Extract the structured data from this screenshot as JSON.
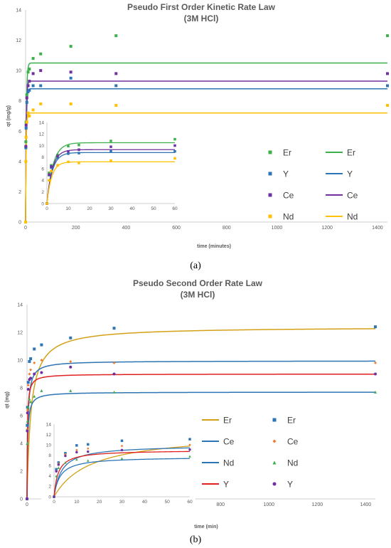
{
  "chart_data": [
    {
      "id": "a",
      "type": "scatter",
      "caption": "(a)",
      "title": "Pseudo First Order Kinetic Rate Law",
      "subtitle": "(3M HCl)",
      "xlabel": "time (minutes)",
      "ylabel": "qt (mg/g)",
      "xlim": [
        0,
        1440
      ],
      "ylim": [
        0,
        14
      ],
      "xticks": [
        0,
        200,
        400,
        600,
        800,
        1000,
        1200,
        1400
      ],
      "yticks": [
        0,
        2,
        4,
        6,
        8,
        10,
        12,
        14
      ],
      "grid": false,
      "legend_position": "right, inside plot",
      "legend": [
        {
          "label": "Er",
          "kind": "marker",
          "series": "Er"
        },
        {
          "label": "Er",
          "kind": "line",
          "series": "Er"
        },
        {
          "label": "Y",
          "kind": "marker",
          "series": "Y"
        },
        {
          "label": "Y",
          "kind": "line",
          "series": "Y"
        },
        {
          "label": "Ce",
          "kind": "marker",
          "series": "Ce"
        },
        {
          "label": "Ce",
          "kind": "line",
          "series": "Ce"
        },
        {
          "label": "Nd",
          "kind": "marker",
          "series": "Nd"
        },
        {
          "label": "Nd",
          "kind": "line",
          "series": "Nd"
        }
      ],
      "series": [
        {
          "name": "Er",
          "color": "#3db04b",
          "marker": "square",
          "x": [
            0,
            1,
            2,
            5,
            10,
            15,
            30,
            60,
            180,
            360,
            1440
          ],
          "y": [
            0,
            5.3,
            6.6,
            8.4,
            9.9,
            10.1,
            10.8,
            11.1,
            11.6,
            12.3,
            12.3
          ],
          "fit_qe": 10.5,
          "fit_k": 0.35
        },
        {
          "name": "Y",
          "color": "#2e75b6",
          "marker": "square",
          "x": [
            0,
            1,
            2,
            5,
            10,
            15,
            30,
            60,
            180,
            360,
            1440
          ],
          "y": [
            0,
            4.9,
            6.2,
            7.9,
            8.6,
            8.7,
            9.0,
            9.0,
            9.5,
            9.0,
            9.0
          ],
          "fit_qe": 8.8,
          "fit_k": 0.4
        },
        {
          "name": "Ce",
          "color": "#7030a0",
          "marker": "square",
          "x": [
            0,
            1,
            2,
            5,
            10,
            15,
            30,
            60,
            180,
            360,
            1440
          ],
          "y": [
            0,
            5.0,
            6.4,
            8.2,
            9.0,
            9.3,
            9.8,
            10.0,
            9.9,
            9.8,
            9.8
          ],
          "fit_qe": 9.3,
          "fit_k": 0.4
        },
        {
          "name": "Nd",
          "color": "#ffc000",
          "marker": "square",
          "x": [
            0,
            1,
            2,
            5,
            10,
            15,
            30,
            60,
            180,
            360,
            1440
          ],
          "y": [
            0,
            4.0,
            5.6,
            6.6,
            7.2,
            7.0,
            7.4,
            7.8,
            7.8,
            7.7,
            7.7
          ],
          "fit_qe": 7.2,
          "fit_k": 0.45
        }
      ],
      "inset": {
        "xlim": [
          0,
          60
        ],
        "ylim": [
          0,
          14
        ],
        "xticks": [
          0,
          10,
          20,
          30,
          40,
          50,
          60
        ],
        "yticks": [
          0,
          2,
          4,
          6,
          8,
          10,
          12,
          14
        ]
      }
    },
    {
      "id": "b",
      "type": "scatter",
      "caption": "(b)",
      "title": "Pseudo Second Order Rate Law",
      "subtitle": "(3M HCl)",
      "xlabel": "time (min)",
      "ylabel": "qt (mg)",
      "xlim": [
        0,
        1440
      ],
      "ylim": [
        0,
        14
      ],
      "xticks": [
        0,
        200,
        400,
        600,
        800,
        1000,
        1200,
        1400
      ],
      "yticks": [
        0,
        2,
        4,
        6,
        8,
        10,
        12,
        14
      ],
      "grid": false,
      "legend_position": "right, inside plot",
      "legend": [
        {
          "label": "Er",
          "kind": "line",
          "series": "Er"
        },
        {
          "label": "Er",
          "kind": "marker",
          "series": "Er"
        },
        {
          "label": "Ce",
          "kind": "line",
          "series": "Ce"
        },
        {
          "label": "Ce",
          "kind": "marker",
          "series": "Ce"
        },
        {
          "label": "Nd",
          "kind": "line",
          "series": "Nd"
        },
        {
          "label": "Nd",
          "kind": "marker",
          "series": "Nd"
        },
        {
          "label": "Y",
          "kind": "line",
          "series": "Y"
        },
        {
          "label": "Y",
          "kind": "marker",
          "series": "Y"
        }
      ],
      "series": [
        {
          "name": "Er",
          "line_color": "#d4a017",
          "marker_color": "#2e75b6",
          "marker": "square",
          "x": [
            0,
            1,
            2,
            5,
            10,
            15,
            30,
            60,
            180,
            360,
            1440
          ],
          "y": [
            0,
            5.3,
            6.6,
            8.4,
            9.9,
            10.1,
            10.8,
            11.1,
            11.6,
            12.3,
            12.4
          ],
          "fit_qe": 12.4,
          "fit_k": 0.005
        },
        {
          "name": "Ce",
          "line_color": "#2e75b6",
          "marker_color": "#ed7d31",
          "marker": "diamond",
          "x": [
            0,
            1,
            2,
            5,
            10,
            15,
            30,
            60,
            180,
            360,
            1440
          ],
          "y": [
            0,
            5.0,
            6.4,
            8.2,
            9.0,
            9.3,
            9.8,
            10.0,
            9.9,
            9.8,
            9.8
          ],
          "fit_qe": 9.95,
          "fit_k": 0.03
        },
        {
          "name": "Nd",
          "line_color": "#2e75b6",
          "marker_color": "#3db04b",
          "marker": "triangle",
          "x": [
            0,
            1,
            2,
            5,
            10,
            15,
            30,
            60,
            180,
            360,
            1440
          ],
          "y": [
            0,
            4.0,
            5.6,
            6.6,
            7.2,
            7.0,
            7.4,
            7.8,
            7.8,
            7.7,
            7.7
          ],
          "fit_qe": 7.7,
          "fit_k": 0.05
        },
        {
          "name": "Y",
          "line_color": "#e02020",
          "marker_color": "#7030a0",
          "marker": "circle",
          "x": [
            0,
            1,
            2,
            5,
            10,
            15,
            30,
            60,
            180,
            360,
            1440
          ],
          "y": [
            0,
            4.9,
            6.2,
            7.9,
            8.6,
            8.7,
            9.0,
            9.1,
            9.5,
            9.0,
            9.0
          ],
          "fit_qe": 9.0,
          "fit_k": 0.06
        }
      ],
      "inset": {
        "xlim": [
          0,
          60
        ],
        "ylim": [
          0,
          14
        ],
        "xticks": [
          0,
          10,
          20,
          30,
          40,
          50,
          60
        ],
        "yticks": [
          0,
          2,
          4,
          6,
          8,
          10,
          12,
          14
        ]
      }
    }
  ]
}
